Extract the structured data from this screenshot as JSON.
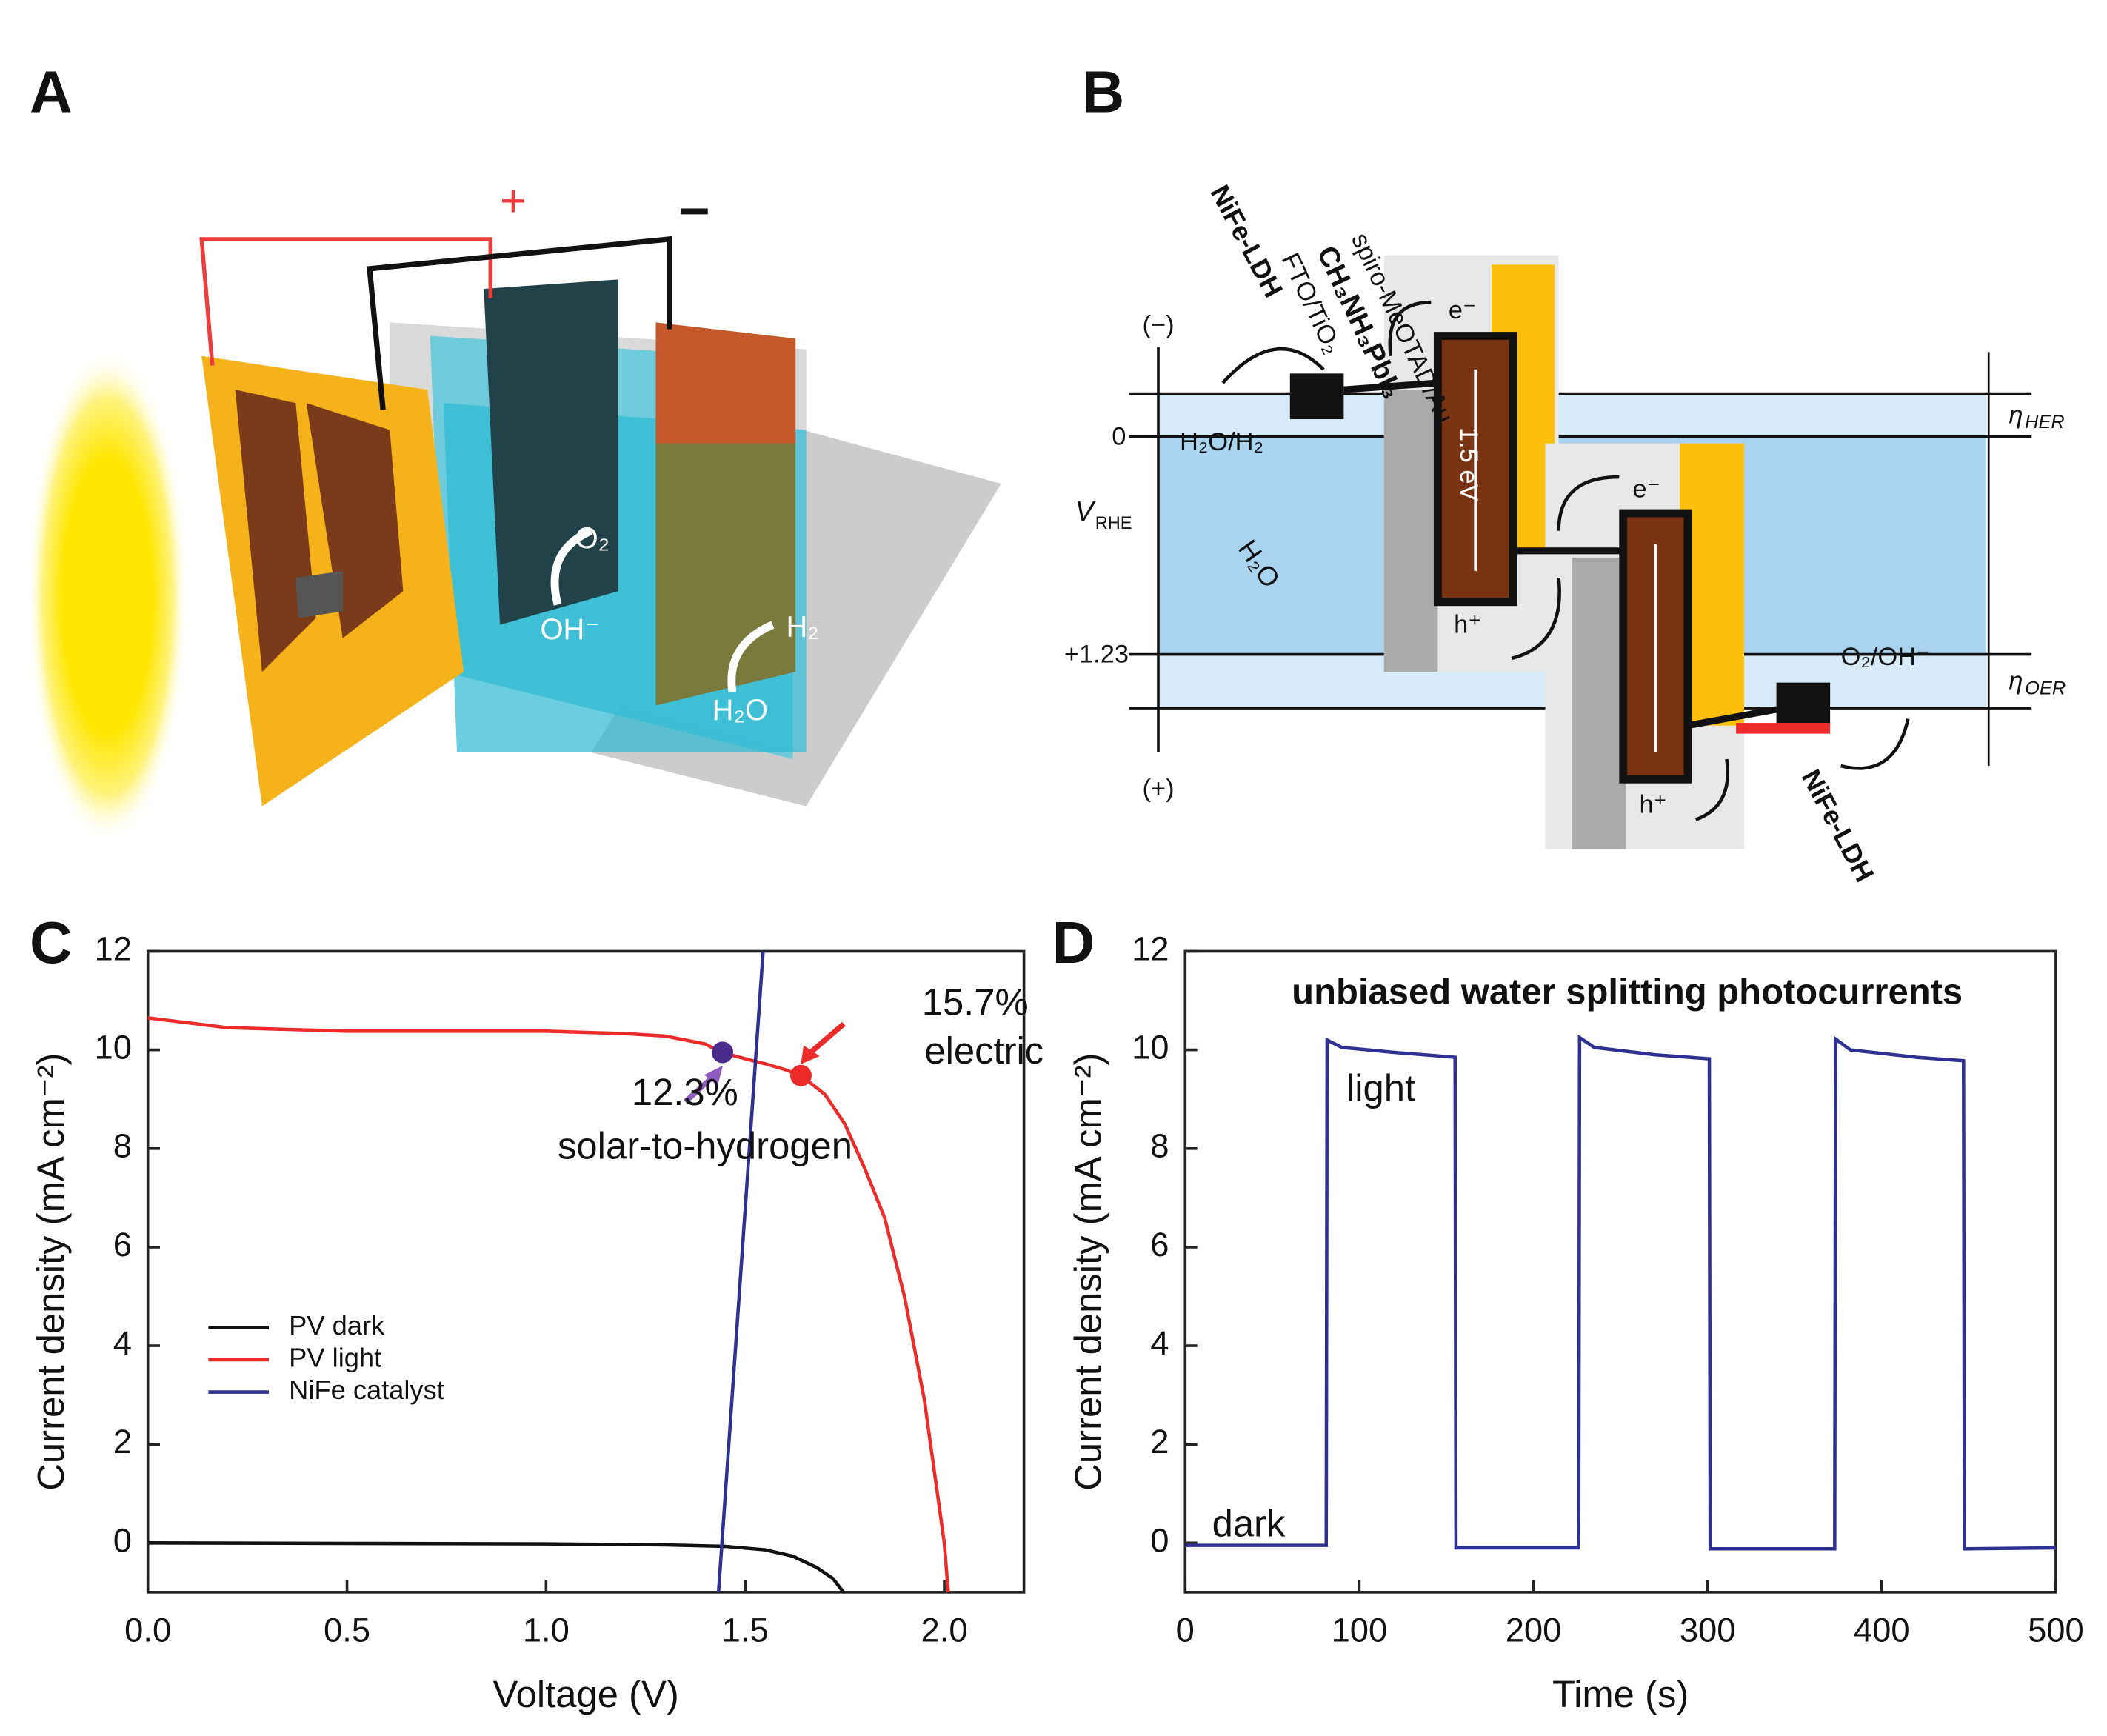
{
  "panels": {
    "a": "A",
    "b": "B",
    "c": "C",
    "d": "D"
  },
  "diagram_a": {
    "plus": "+",
    "minus": "−",
    "o2": "O₂",
    "oh": "OH⁻",
    "h2": "H₂",
    "h2o": "H₂O"
  },
  "diagram_b": {
    "spiro": "spiro-MeOTAD/Au",
    "perovskite": "CH₃NH₃PbI₃",
    "fto": "FTO/TiO₂",
    "nife_top": "NiFe-LDH",
    "nife_bottom": "NiFe-LDH",
    "neg": "(−)",
    "pos": "(+)",
    "zero": "0",
    "oer_potential": "+1.23",
    "her_couple": "H₂O/H₂",
    "oer_couple": "O₂/OH⁻",
    "water": "H₂O",
    "v": "V",
    "v_sub": "RHE",
    "eta_her": "η",
    "eta_her_sub": "HER",
    "eta_oer": "η",
    "eta_oer_sub": "OER",
    "gap": "1.5 eV",
    "e1": "e⁻",
    "e2": "e⁻",
    "h1": "h⁺",
    "h2": "h⁺"
  },
  "chart_data": [
    {
      "type": "line",
      "x_label": "Voltage (V)",
      "y_label": "Current density (mA cm⁻²)",
      "xlim": [
        0,
        2.2
      ],
      "ylim": [
        -1,
        12
      ],
      "xticks": [
        {
          "value": 0,
          "label": "0.0"
        },
        0.5,
        {
          "value": 1,
          "label": "1.0"
        },
        1.5,
        {
          "value": 2,
          "label": "2.0"
        }
      ],
      "yticks": [
        0,
        2,
        4,
        6,
        8,
        10,
        12
      ],
      "legend": "center left",
      "series": [
        {
          "name": "PV dark",
          "color": "#111111",
          "x": [
            0,
            0.5,
            1.0,
            1.3,
            1.45,
            1.55,
            1.62,
            1.68,
            1.72,
            1.747
          ],
          "values": [
            0,
            -0.01,
            -0.02,
            -0.04,
            -0.07,
            -0.14,
            -0.27,
            -0.5,
            -0.72,
            -1
          ]
        },
        {
          "name": "PV light",
          "color": "#ee2b2b",
          "x": [
            0,
            0.1,
            0.2,
            0.5,
            1.0,
            1.2,
            1.3,
            1.4,
            1.44,
            1.5,
            1.55,
            1.6,
            1.64,
            1.7,
            1.75,
            1.8,
            1.85,
            1.9,
            1.95,
            2.0,
            2.01
          ],
          "values": [
            10.65,
            10.55,
            10.45,
            10.38,
            10.38,
            10.33,
            10.28,
            10.12,
            9.95,
            9.82,
            9.72,
            9.6,
            9.48,
            9.1,
            8.5,
            7.6,
            6.6,
            5.0,
            2.9,
            0.0,
            -1
          ]
        },
        {
          "name": "NiFe catalyst",
          "color": "#2e3192",
          "x": [
            1.433,
            1.545
          ],
          "values": [
            -1,
            12
          ]
        }
      ],
      "points": [
        {
          "x": 1.443,
          "y": 9.95,
          "color": "#4b2c8c"
        },
        {
          "x": 1.64,
          "y": 9.48,
          "color": "#ee2b2b"
        }
      ],
      "annotations": [
        "15.7%",
        "electric",
        "12.3%",
        "solar-to-hydrogen"
      ]
    },
    {
      "type": "line",
      "title": "unbiased water splitting photocurrents",
      "x_label": "Time (s)",
      "y_label": "Current density (mA cm⁻²)",
      "xlim": [
        0,
        500
      ],
      "ylim": [
        -1,
        12
      ],
      "xticks": [
        0,
        100,
        200,
        300,
        400,
        500
      ],
      "yticks": [
        0,
        2,
        4,
        6,
        8,
        10,
        12
      ],
      "series": [
        {
          "color": "#2e3192",
          "x": [
            0,
            81,
            81.5,
            90,
            120,
            155,
            155.5,
            226,
            226.5,
            235,
            270,
            301,
            301.5,
            373,
            373.5,
            382,
            420,
            447,
            447.5,
            500
          ],
          "values": [
            -0.05,
            -0.05,
            10.2,
            10.05,
            9.95,
            9.85,
            -0.1,
            -0.1,
            10.25,
            10.05,
            9.9,
            9.82,
            -0.12,
            -0.12,
            10.22,
            10.0,
            9.85,
            9.78,
            -0.12,
            -0.1
          ]
        }
      ],
      "annotations": [
        "light",
        "dark"
      ]
    }
  ]
}
